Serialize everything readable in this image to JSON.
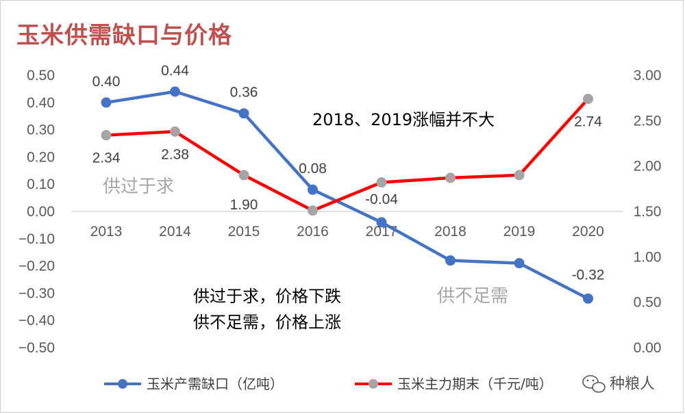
{
  "title": "玉米供需缺口与价格",
  "chart_data": {
    "type": "line",
    "categories": [
      "2013",
      "2014",
      "2015",
      "2016",
      "2017",
      "2018",
      "2019",
      "2020"
    ],
    "y_left": {
      "ylim": [
        -0.5,
        0.5
      ],
      "ticks": [
        "0.50",
        "0.40",
        "0.30",
        "0.20",
        "0.10",
        "0.00",
        "−0.10",
        "−0.20",
        "−0.30",
        "−0.40",
        "−0.50"
      ]
    },
    "y_right": {
      "ylim": [
        0,
        3
      ],
      "ticks": [
        "3.00",
        "2.50",
        "2.00",
        "1.50",
        "1.00",
        "0.50",
        "0.00"
      ]
    },
    "series": [
      {
        "name": "玉米产需缺口（亿吨）",
        "axis": "left",
        "color": "#4472c4",
        "values": [
          0.4,
          0.44,
          0.36,
          0.08,
          -0.04,
          -0.18,
          -0.19,
          -0.32
        ],
        "labels": [
          "0.40",
          "0.44",
          "0.36",
          "0.08",
          "-0.04",
          "",
          "",
          "-0.32"
        ]
      },
      {
        "name": "玉米主力期末（千元/吨）",
        "axis": "right",
        "color": "#ff0000",
        "marker_color": "#a5a5a5",
        "values": [
          2.34,
          2.38,
          1.9,
          1.51,
          1.82,
          1.87,
          1.9,
          2.74
        ],
        "labels": [
          "2.34",
          "2.38",
          "1.90",
          "",
          "",
          "",
          "",
          "2.74"
        ]
      }
    ],
    "annotations": {
      "top_right": "2018、2019涨幅并不大",
      "surplus": "供过于求",
      "shortage": "供不足需",
      "rule_line1": "供过于求，价格下跌",
      "rule_line2": "供不足需，价格上涨"
    },
    "legend_position": "bottom"
  },
  "watermark": "种粮人"
}
